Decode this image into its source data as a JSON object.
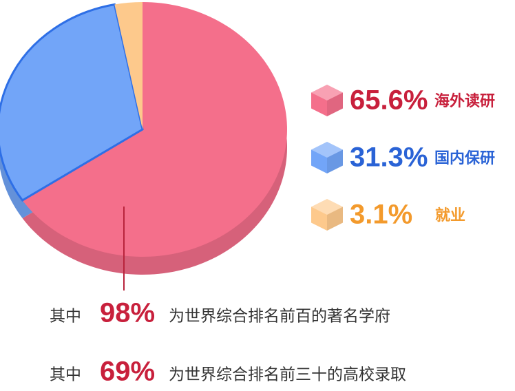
{
  "chart_data": {
    "type": "pie",
    "categories": [
      "海外读研",
      "国内保研",
      "就业"
    ],
    "values": [
      65.6,
      31.3,
      3.1
    ],
    "value_labels": [
      "65.6%",
      "31.3%",
      "3.1%"
    ],
    "colors": [
      "#f46f8b",
      "#72a5f8",
      "#fdc98c"
    ],
    "label_colors": [
      "#c8203c",
      "#2a63d6",
      "#f39a2c"
    ],
    "annotations": [
      {
        "prefix": "其中",
        "highlight": "98%",
        "text": "为世界综合排名前百的著名学府"
      },
      {
        "prefix": "其中",
        "highlight": "69%",
        "text": "为世界综合排名前三十的高校录取"
      }
    ]
  }
}
